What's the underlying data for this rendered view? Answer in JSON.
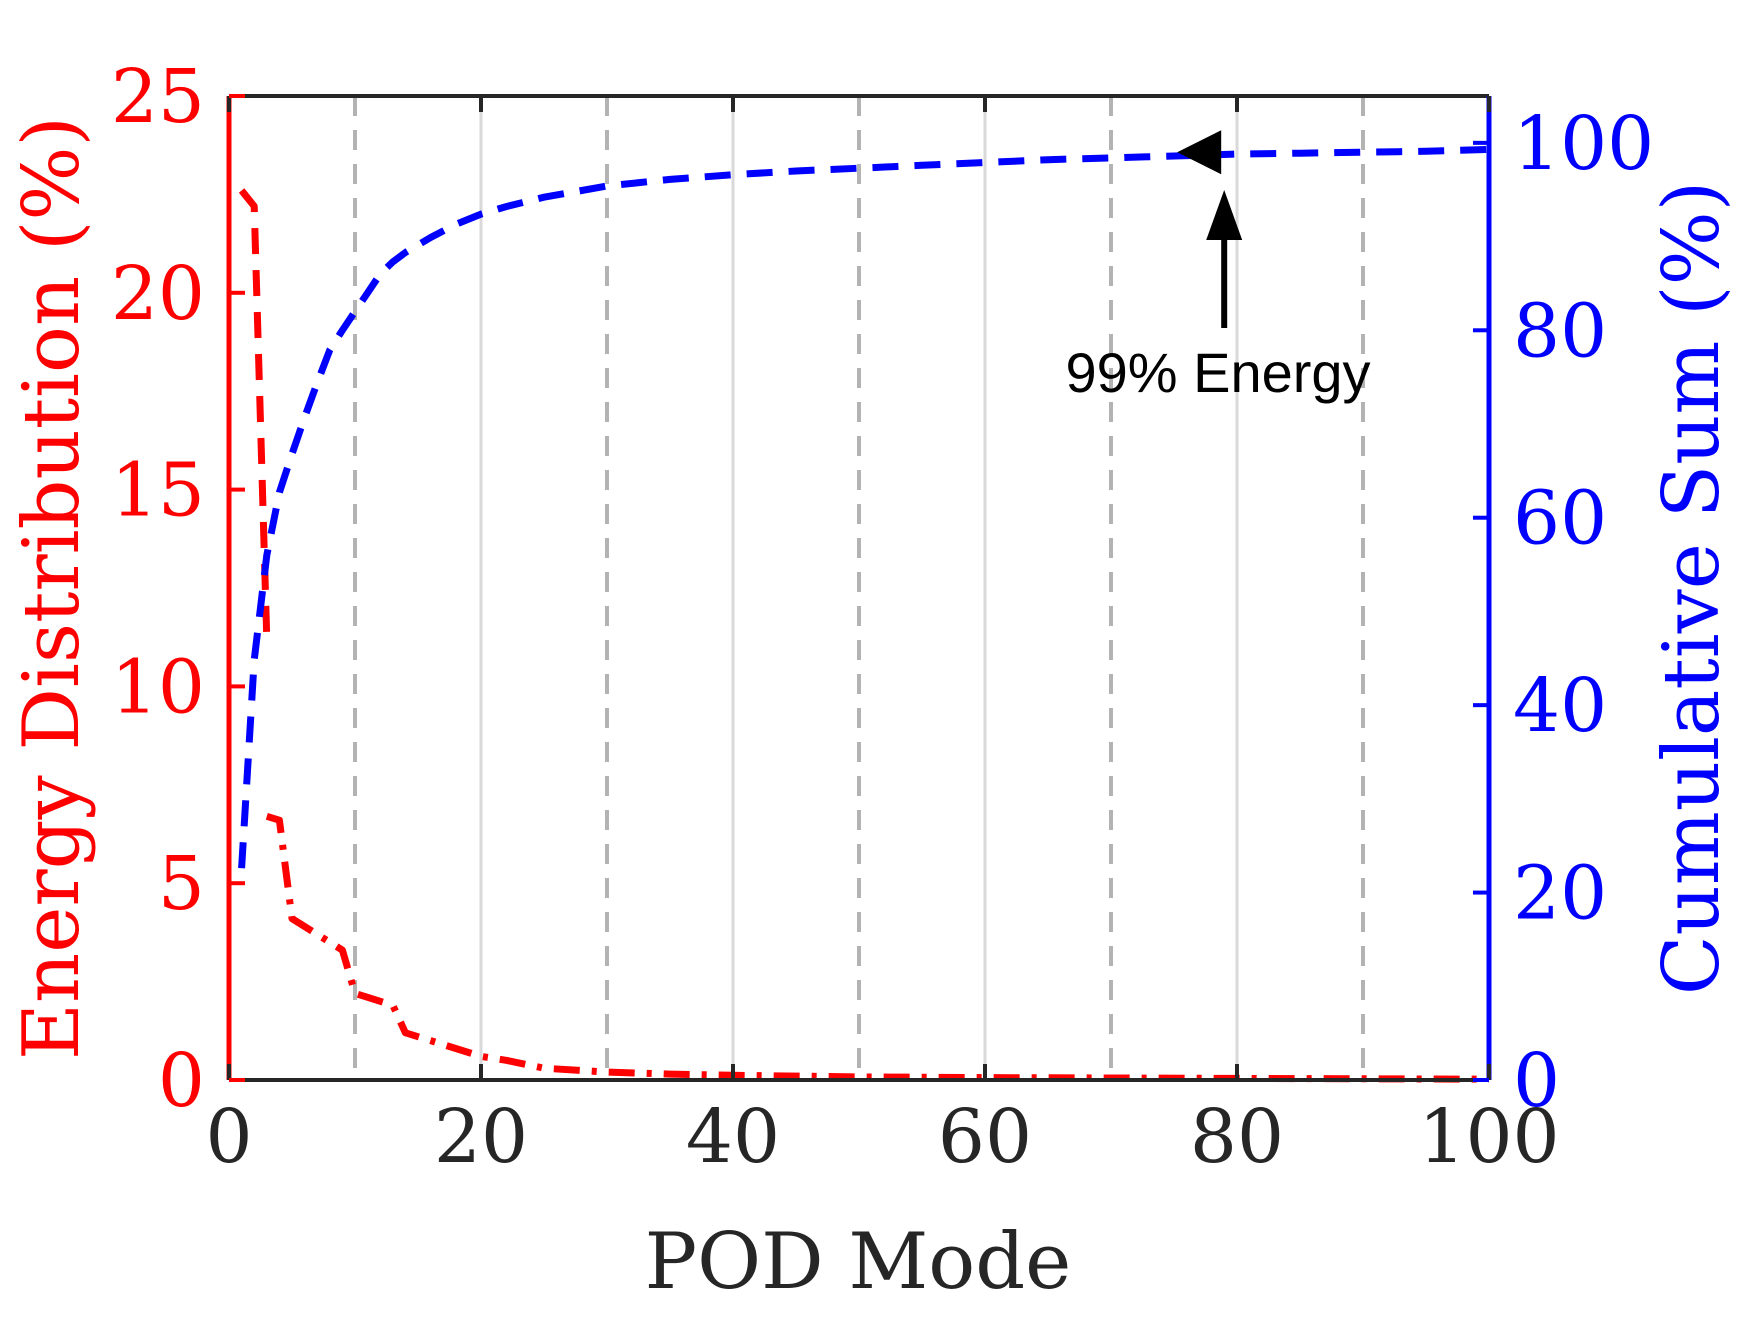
{
  "chart_data": {
    "type": "line",
    "xlabel": "POD Mode",
    "ylabel_left": "Energy Distribution (%)",
    "ylabel_right": "Cumulative Sum (%)",
    "xlim": [
      0,
      100
    ],
    "ylim_left": [
      0,
      25
    ],
    "ylim_right": [
      0,
      105
    ],
    "x_ticks": [
      0,
      20,
      40,
      60,
      80,
      100
    ],
    "x_tick_labels": [
      "0",
      "20",
      "40",
      "60",
      "80",
      "100"
    ],
    "y_left_ticks": [
      0,
      5,
      10,
      15,
      20,
      25
    ],
    "y_left_tick_labels": [
      "0",
      "5",
      "10",
      "15",
      "20",
      "25"
    ],
    "y_right_ticks": [
      0,
      20,
      40,
      60,
      80,
      100
    ],
    "y_right_tick_labels": [
      "0",
      "20",
      "40",
      "60",
      "80",
      "100"
    ],
    "grid_solid_x": [
      20,
      40,
      60,
      80
    ],
    "grid_dashed_x": [
      10,
      30,
      50,
      70,
      90
    ],
    "series": [
      {
        "axis": "left",
        "color": "#ff0000",
        "style": "dashed",
        "x": [
          1,
          2,
          3
        ],
        "y": [
          22.6,
          22.2,
          11.2
        ]
      },
      {
        "axis": "left",
        "color": "#ff0000",
        "style": "dash-dot",
        "x": [
          3,
          4,
          5,
          6,
          7,
          8,
          9,
          10,
          11,
          12,
          13,
          14,
          15,
          16,
          18,
          20,
          22,
          25,
          30,
          35,
          40,
          50,
          60,
          70,
          80,
          90,
          100
        ],
        "y": [
          6.7,
          6.6,
          4.1,
          3.9,
          3.7,
          3.5,
          3.3,
          2.2,
          2.1,
          2.0,
          1.9,
          1.2,
          1.1,
          1.0,
          0.8,
          0.6,
          0.5,
          0.3,
          0.2,
          0.15,
          0.12,
          0.08,
          0.06,
          0.05,
          0.04,
          0.03,
          0.02
        ]
      },
      {
        "axis": "right",
        "color": "#0000ff",
        "style": "dashed",
        "x": [
          1,
          2,
          3,
          4,
          5,
          6,
          7,
          8,
          9,
          10,
          11,
          12,
          13,
          14,
          15,
          16,
          18,
          20,
          22,
          25,
          30,
          35,
          40,
          45,
          50,
          55,
          60,
          65,
          70,
          75,
          80,
          85,
          90,
          95,
          100
        ],
        "y": [
          22.6,
          44.8,
          56.0,
          62.7,
          66.8,
          70.7,
          74.4,
          77.9,
          80.0,
          82.0,
          84.0,
          86.0,
          87.3,
          88.3,
          89.1,
          89.9,
          91.3,
          92.4,
          93.2,
          94.2,
          95.4,
          96.1,
          96.6,
          97.0,
          97.3,
          97.6,
          97.9,
          98.2,
          98.4,
          98.6,
          98.8,
          98.9,
          99.0,
          99.1,
          99.3
        ]
      }
    ],
    "annotation": {
      "text": "99% Energy",
      "target_x": 77,
      "target_y_right": 99
    }
  },
  "colors": {
    "left_axis": "#ff0000",
    "right_axis": "#0000ff",
    "frame": "#262626",
    "grid_solid": "#d9d9d9",
    "grid_dashed": "#b3b3b3",
    "annotation": "#000000"
  }
}
